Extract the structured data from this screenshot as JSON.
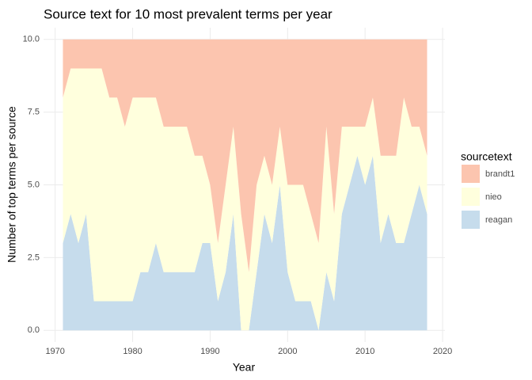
{
  "chart_data": {
    "type": "stacked_area",
    "title": "Source text for 10 most prevalent terms per year",
    "x_label": "Year",
    "y_label": "Number of top terms per source",
    "legend_title": "sourcetext",
    "legend_position": "right",
    "grid": true,
    "x": [
      1971,
      1972,
      1973,
      1974,
      1975,
      1976,
      1977,
      1978,
      1979,
      1980,
      1981,
      1982,
      1983,
      1984,
      1985,
      1986,
      1987,
      1988,
      1989,
      1990,
      1991,
      1992,
      1993,
      1994,
      1995,
      1996,
      1997,
      1998,
      1999,
      2000,
      2001,
      2002,
      2003,
      2004,
      2005,
      2006,
      2007,
      2008,
      2009,
      2010,
      2011,
      2012,
      2013,
      2014,
      2015,
      2016,
      2017,
      2018
    ],
    "series": [
      {
        "name": "brandt1",
        "color": "#fcc5af",
        "values": [
          2,
          1,
          1,
          1,
          1,
          1,
          2,
          2,
          3,
          2,
          2,
          2,
          2,
          3,
          3,
          3,
          3,
          4,
          4,
          5,
          7,
          5,
          3,
          6,
          8,
          5,
          4,
          5,
          3,
          5,
          5,
          5,
          6,
          7,
          3,
          6,
          3,
          3,
          3,
          3,
          2,
          4,
          4,
          4,
          2,
          3,
          3,
          4
        ]
      },
      {
        "name": "nieo",
        "color": "#ffffdd",
        "values": [
          5,
          5,
          6,
          5,
          8,
          8,
          7,
          7,
          6,
          7,
          6,
          6,
          5,
          5,
          5,
          5,
          5,
          4,
          3,
          2,
          2,
          3,
          3,
          4,
          2,
          3,
          2,
          2,
          2,
          3,
          4,
          4,
          3,
          3,
          5,
          3,
          3,
          2,
          1,
          2,
          2,
          3,
          2,
          3,
          5,
          3,
          2,
          2
        ]
      },
      {
        "name": "reagan",
        "color": "#c6dcec",
        "values": [
          3,
          4,
          3,
          4,
          1,
          1,
          1,
          1,
          1,
          1,
          2,
          2,
          3,
          2,
          2,
          2,
          2,
          2,
          3,
          3,
          1,
          2,
          4,
          0,
          0,
          2,
          4,
          3,
          5,
          2,
          1,
          1,
          1,
          0,
          2,
          1,
          4,
          5,
          6,
          5,
          6,
          3,
          4,
          3,
          3,
          4,
          5,
          4
        ]
      }
    ],
    "xlim": [
      1968.5,
      2020.3
    ],
    "ylim": [
      -0.4,
      10.4
    ],
    "xticks": [
      1970,
      1980,
      1990,
      2000,
      2010,
      2020
    ],
    "yticks": [
      {
        "value": 0,
        "label": "0.0"
      },
      {
        "value": 2.5,
        "label": "2.5"
      },
      {
        "value": 5,
        "label": "5.0"
      },
      {
        "value": 7.5,
        "label": "7.5"
      },
      {
        "value": 10,
        "label": "10.0"
      }
    ]
  }
}
